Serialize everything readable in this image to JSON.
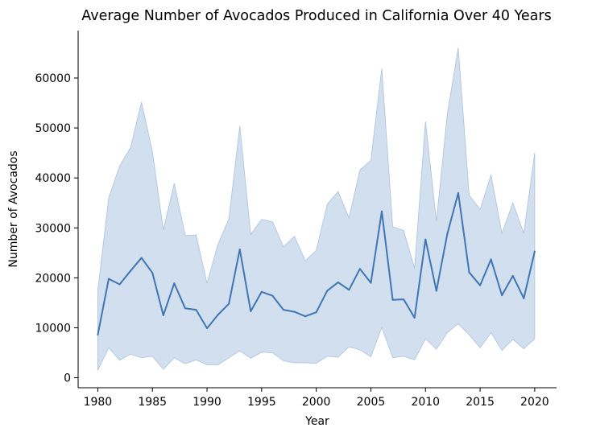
{
  "chart_data": {
    "type": "line",
    "title": "Average Number of Avocados Produced in California Over 40 Years",
    "xlabel": "Year",
    "ylabel": "Number of Avocados",
    "xlim": [
      1978.2,
      2022
    ],
    "ylim": [
      -2000,
      69500
    ],
    "x_ticks": [
      1980,
      1985,
      1990,
      1995,
      2000,
      2005,
      2010,
      2015,
      2020
    ],
    "y_ticks": [
      0,
      10000,
      20000,
      30000,
      40000,
      50000,
      60000
    ],
    "grid": false,
    "legend": "none",
    "colors": {
      "line": "#3f76b4",
      "band": "#c3d4e8",
      "band_edge": "#aac2de",
      "axis": "#000000"
    },
    "x": [
      1980,
      1981,
      1982,
      1983,
      1984,
      1985,
      1986,
      1987,
      1988,
      1989,
      1990,
      1991,
      1992,
      1993,
      1994,
      1995,
      1996,
      1997,
      1998,
      1999,
      2000,
      2001,
      2002,
      2003,
      2004,
      2005,
      2006,
      2007,
      2008,
      2009,
      2010,
      2011,
      2012,
      2013,
      2014,
      2015,
      2016,
      2017,
      2018,
      2019,
      2020
    ],
    "series": [
      {
        "values": [
          8600,
          19800,
          18700,
          21400,
          24000,
          21000,
          12500,
          18900,
          13900,
          13600,
          9900,
          12600,
          14800,
          25700,
          13300,
          17200,
          16400,
          13600,
          13200,
          12300,
          13100,
          17400,
          19100,
          17600,
          21800,
          19000,
          33300,
          15600,
          15700,
          12000,
          27700,
          17400,
          28800,
          37000,
          21100,
          18500,
          23700,
          16500,
          20400,
          15900,
          25300
        ],
        "lower": [
          1500,
          6000,
          3500,
          4700,
          4000,
          4300,
          1700,
          4000,
          2800,
          3600,
          2600,
          2600,
          4000,
          5400,
          3900,
          5100,
          5000,
          3400,
          3000,
          3000,
          2900,
          4300,
          4100,
          6200,
          5600,
          4200,
          10100,
          4000,
          4300,
          3600,
          7800,
          5700,
          9000,
          10800,
          8600,
          6000,
          9000,
          5500,
          7700,
          5800,
          7800
        ],
        "upper": [
          17500,
          36000,
          42400,
          46100,
          55200,
          45300,
          29600,
          38900,
          28500,
          28600,
          18900,
          26700,
          31800,
          50400,
          28700,
          31700,
          31200,
          26200,
          28300,
          23400,
          25500,
          34700,
          37300,
          32000,
          41600,
          43500,
          61900,
          30200,
          29500,
          21900,
          51300,
          31300,
          52800,
          66100,
          36500,
          33700,
          40600,
          28900,
          35000,
          28900,
          45000
        ]
      }
    ]
  }
}
